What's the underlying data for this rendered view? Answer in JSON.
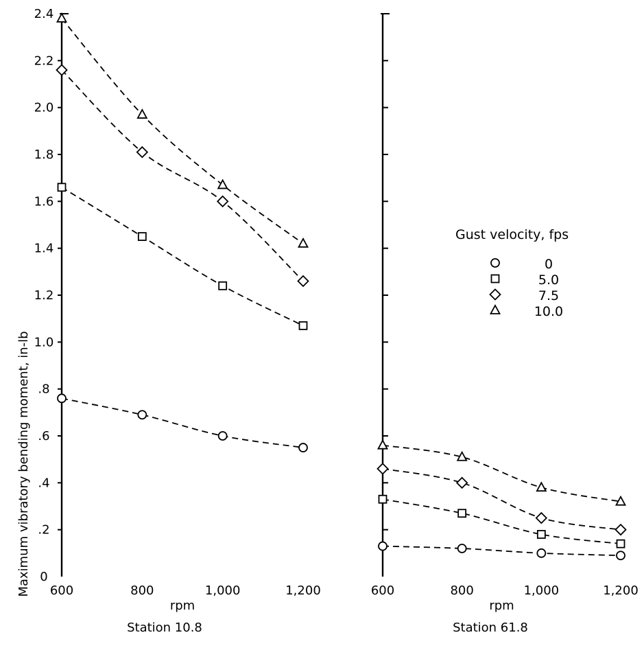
{
  "chart_data": {
    "type": "line",
    "ylabel": "Maximum vibratory bending moment, in-lb",
    "ylim": [
      0,
      2.4
    ],
    "yticks": [
      {
        "v": 0,
        "label": "0"
      },
      {
        "v": 0.2,
        "label": ".2"
      },
      {
        "v": 0.4,
        "label": ".4"
      },
      {
        "v": 0.6,
        "label": ".6"
      },
      {
        "v": 0.8,
        "label": ".8"
      },
      {
        "v": 1.0,
        "label": "1.0"
      },
      {
        "v": 1.2,
        "label": "1.2"
      },
      {
        "v": 1.4,
        "label": "1.4"
      },
      {
        "v": 1.6,
        "label": "1.6"
      },
      {
        "v": 1.8,
        "label": "1.8"
      },
      {
        "v": 2.0,
        "label": "2.0"
      },
      {
        "v": 2.2,
        "label": "2.2"
      },
      {
        "v": 2.4,
        "label": "2.4"
      }
    ],
    "x": [
      600,
      800,
      1000,
      1200
    ],
    "xtick_labels": [
      "600",
      "800",
      "1,000",
      "1,200"
    ],
    "xlabel": "rpm",
    "grid": false,
    "legend": {
      "title": "Gust velocity, fps",
      "placement": "right panel, middle",
      "entries": [
        {
          "marker": "circle",
          "label": "0"
        },
        {
          "marker": "square",
          "label": "5.0"
        },
        {
          "marker": "diamond",
          "label": "7.5"
        },
        {
          "marker": "triangle",
          "label": "10.0"
        }
      ]
    },
    "panels": [
      {
        "subtitle": "Station 10.8",
        "series": [
          {
            "marker": "circle",
            "values": [
              0.76,
              0.69,
              0.6,
              0.55
            ]
          },
          {
            "marker": "square",
            "values": [
              1.66,
              1.45,
              1.24,
              1.07
            ]
          },
          {
            "marker": "diamond",
            "values": [
              2.16,
              1.81,
              1.6,
              1.26
            ]
          },
          {
            "marker": "triangle",
            "values": [
              2.38,
              1.97,
              1.67,
              1.42
            ]
          }
        ]
      },
      {
        "subtitle": "Station 61.8",
        "series": [
          {
            "marker": "circle",
            "values": [
              0.13,
              0.12,
              0.1,
              0.09
            ]
          },
          {
            "marker": "square",
            "values": [
              0.33,
              0.27,
              0.18,
              0.14
            ]
          },
          {
            "marker": "diamond",
            "values": [
              0.46,
              0.4,
              0.25,
              0.2
            ]
          },
          {
            "marker": "triangle",
            "values": [
              0.56,
              0.51,
              0.38,
              0.32
            ]
          }
        ]
      }
    ]
  }
}
